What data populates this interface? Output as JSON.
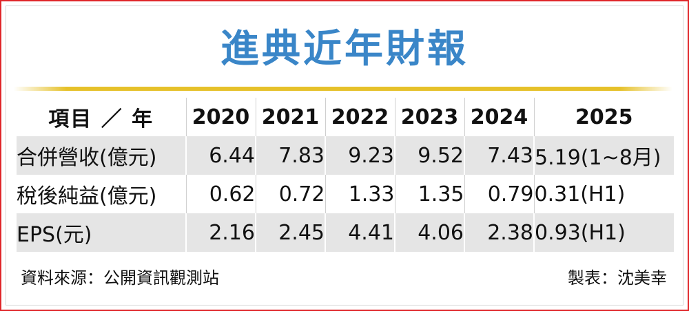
{
  "title": "進典近年財報",
  "chart_data": {
    "type": "table",
    "title": "進典近年財報",
    "header": {
      "item_label": "項目 ／ 年",
      "years": [
        "2020",
        "2021",
        "2022",
        "2023",
        "2024",
        "2025"
      ]
    },
    "rows": [
      {
        "label": "合併營收(億元)",
        "values": [
          "6.44",
          "7.83",
          "9.23",
          "9.52",
          "7.43",
          "5.19(1~8月)"
        ]
      },
      {
        "label": "稅後純益(億元)",
        "values": [
          "0.62",
          "0.72",
          "1.33",
          "1.35",
          "0.79",
          "0.31(H1)"
        ]
      },
      {
        "label": "EPS(元)",
        "values": [
          "2.16",
          "2.45",
          "4.41",
          "4.06",
          "2.38",
          "0.93(H1)"
        ]
      }
    ]
  },
  "footer": {
    "source": "資料來源：公開資訊觀測站",
    "maker": "製表：沈美幸"
  },
  "colors": {
    "title": "#3a86c8",
    "rule": "#e6c12a",
    "border": "#e0262a",
    "row_band": "#e5e5e5"
  }
}
